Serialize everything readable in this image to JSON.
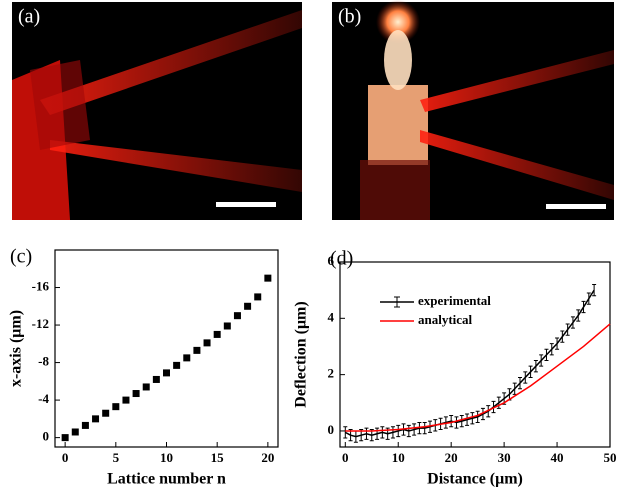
{
  "panels": [
    {
      "label": "(a)"
    },
    {
      "label": "(b)"
    }
  ],
  "chart_data": [
    {
      "type": "scatter",
      "panel_label": "(c)",
      "x_label": "Lattice number n",
      "y_label": "x-axis  (μm)",
      "x": [
        0,
        1,
        2,
        3,
        4,
        5,
        6,
        7,
        8,
        9,
        10,
        11,
        12,
        13,
        14,
        15,
        16,
        17,
        18,
        19,
        20
      ],
      "series": [
        {
          "color": "#000000",
          "values": [
            0,
            -0.6,
            -1.3,
            -2.0,
            -2.6,
            -3.3,
            -4.0,
            -4.7,
            -5.4,
            -6.2,
            -6.9,
            -7.7,
            -8.5,
            -9.3,
            -10.1,
            -11.0,
            -11.9,
            -13.0,
            -14.0,
            -15.0,
            -17.0
          ]
        }
      ],
      "xlim": [
        -1,
        21
      ],
      "ylim": [
        1,
        -20
      ],
      "xticks": [
        0,
        5,
        10,
        15,
        20
      ],
      "yticks": [
        0,
        -4,
        -8,
        -12,
        -16
      ]
    },
    {
      "type": "line",
      "panel_label": "(d)",
      "x_label": "Distance  (μm)",
      "y_label": "Deflection  (μm)",
      "series": [
        {
          "name": "experimental",
          "color": "#000000",
          "x": [
            0,
            1,
            2,
            3,
            4,
            5,
            6,
            7,
            8,
            9,
            10,
            11,
            12,
            13,
            14,
            15,
            16,
            17,
            18,
            19,
            20,
            21,
            22,
            23,
            24,
            25,
            26,
            27,
            28,
            29,
            30,
            31,
            32,
            33,
            34,
            35,
            36,
            37,
            38,
            39,
            40,
            41,
            42,
            43,
            44,
            45,
            46,
            47
          ],
          "values": [
            -0.05,
            -0.15,
            -0.2,
            -0.15,
            -0.1,
            -0.15,
            -0.1,
            -0.05,
            -0.1,
            -0.05,
            0,
            0.05,
            0,
            0.05,
            0.1,
            0.1,
            0.15,
            0.2,
            0.25,
            0.3,
            0.35,
            0.3,
            0.35,
            0.4,
            0.45,
            0.5,
            0.6,
            0.7,
            0.85,
            1.0,
            1.15,
            1.3,
            1.5,
            1.7,
            1.9,
            2.1,
            2.3,
            2.5,
            2.7,
            2.9,
            3.1,
            3.35,
            3.6,
            3.85,
            4.1,
            4.4,
            4.7,
            5.0
          ],
          "errors": [
            0.2,
            0.2,
            0.2,
            0.2,
            0.2,
            0.2,
            0.2,
            0.2,
            0.2,
            0.2,
            0.2,
            0.2,
            0.2,
            0.2,
            0.2,
            0.2,
            0.2,
            0.2,
            0.2,
            0.2,
            0.2,
            0.2,
            0.2,
            0.2,
            0.2,
            0.2,
            0.2,
            0.2,
            0.2,
            0.2,
            0.2,
            0.2,
            0.2,
            0.2,
            0.2,
            0.2,
            0.2,
            0.2,
            0.2,
            0.2,
            0.2,
            0.2,
            0.2,
            0.2,
            0.2,
            0.2,
            0.2,
            0.2
          ]
        },
        {
          "name": "analytical",
          "color": "#ff0000",
          "x": [
            0,
            5,
            10,
            15,
            20,
            25,
            30,
            35,
            40,
            45,
            50
          ],
          "values": [
            0,
            0,
            0.05,
            0.15,
            0.3,
            0.55,
            1.0,
            1.6,
            2.3,
            3.0,
            3.8
          ]
        }
      ],
      "xlim": [
        -1,
        50
      ],
      "ylim": [
        -0.57,
        6
      ],
      "xticks": [
        0,
        10,
        20,
        30,
        40,
        50
      ],
      "yticks": [
        0,
        2,
        4,
        6
      ]
    }
  ]
}
